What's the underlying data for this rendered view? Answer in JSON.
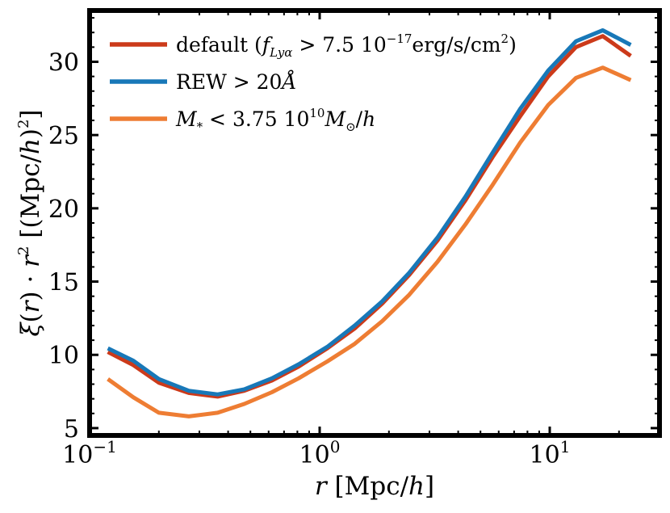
{
  "chart_data": {
    "type": "line",
    "title": "",
    "xscale": "log",
    "xlim": [
      0.1,
      30
    ],
    "ylim": [
      4.5,
      33.5
    ],
    "x_ticks": [
      {
        "value": 0.1,
        "base": "10",
        "exp": "−1"
      },
      {
        "value": 1,
        "base": "10",
        "exp": "0"
      },
      {
        "value": 10,
        "base": "10",
        "exp": "1"
      }
    ],
    "y_ticks": [
      {
        "value": 5,
        "label": "5"
      },
      {
        "value": 10,
        "label": "10"
      },
      {
        "value": 15,
        "label": "15"
      },
      {
        "value": 20,
        "label": "20"
      },
      {
        "value": 25,
        "label": "25"
      },
      {
        "value": 30,
        "label": "30"
      }
    ],
    "xlabel": {
      "sym": "r",
      "unit": " [Mpc/",
      "unit_sym": "h",
      "close": "]"
    },
    "ylabel": {
      "p1": "ξ",
      "p2": "(",
      "p3": "r",
      "p4": ") · ",
      "p5": "r",
      "p6": "2",
      "p7": " [(Mpc/",
      "p8": "h",
      "p9": ")",
      "p10": "2",
      "p11": "]"
    },
    "x": [
      0.12,
      0.155,
      0.2,
      0.27,
      0.36,
      0.47,
      0.62,
      0.81,
      1.08,
      1.42,
      1.87,
      2.45,
      3.25,
      4.3,
      5.65,
      7.45,
      9.85,
      13.0,
      17.0,
      22.5
    ],
    "series": [
      {
        "name": "default",
        "color": "#cc3a1a",
        "values": [
          10.2,
          9.3,
          8.1,
          7.4,
          7.15,
          7.55,
          8.25,
          9.2,
          10.45,
          11.8,
          13.5,
          15.45,
          17.8,
          20.55,
          23.5,
          26.3,
          29.0,
          31.0,
          31.75,
          30.4
        ],
        "legend": {
          "pre": "default (",
          "f": "f",
          "sub": "Lyα",
          "mid": " > 7.5 10",
          "sup": "−17",
          "post": "erg/s/cm",
          "sup2": "2",
          "end": ")"
        }
      },
      {
        "name": "REW > 20Å",
        "color": "#1878b8",
        "values": [
          10.45,
          9.6,
          8.35,
          7.55,
          7.3,
          7.65,
          8.4,
          9.35,
          10.55,
          12.0,
          13.65,
          15.6,
          18.0,
          20.8,
          23.8,
          26.8,
          29.4,
          31.4,
          32.15,
          31.15
        ],
        "legend": {
          "pre": "REW ",
          "mid": "> 20",
          "sym": "Å"
        }
      },
      {
        "name": "M* < 3.75 10^10 Msun/h",
        "color": "#ee7d33",
        "values": [
          8.35,
          7.1,
          6.05,
          5.8,
          6.05,
          6.65,
          7.45,
          8.4,
          9.55,
          10.75,
          12.3,
          14.1,
          16.35,
          18.9,
          21.6,
          24.5,
          27.05,
          28.9,
          29.6,
          28.75
        ],
        "legend": {
          "m": "M",
          "msub": "*",
          "mid": " < 3.75 10",
          "sup": "10",
          "m2": "M",
          "m2sub": "⊙",
          "slash": "/",
          "h": "h"
        }
      }
    ]
  }
}
